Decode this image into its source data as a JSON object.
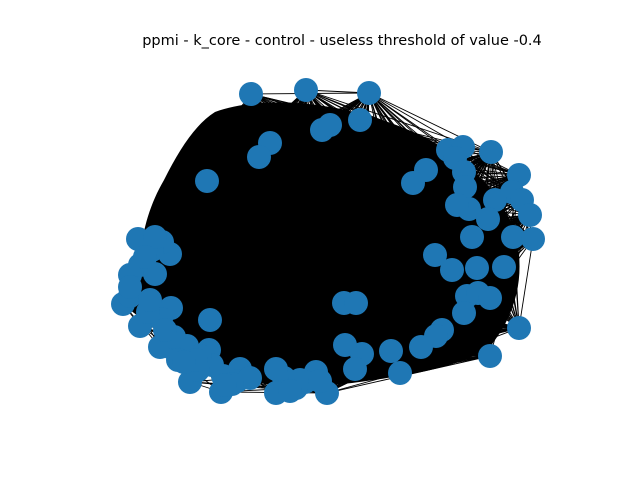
{
  "chart_data": {
    "type": "network",
    "title": "ppmi - k_core - control - useless threshold of value -0.4",
    "layout": "spring",
    "node_count": 96,
    "node_color": "#1f77b4",
    "edge_color": "#000000",
    "core_fill": "dense black edge mass",
    "axes_visible": false
  }
}
